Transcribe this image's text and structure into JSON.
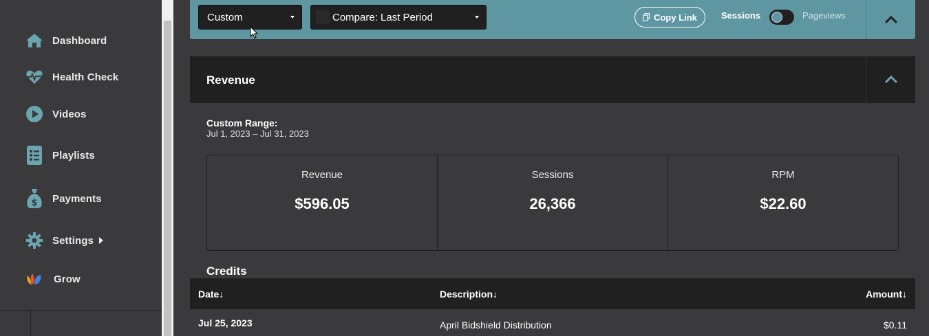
{
  "sidebar": {
    "items": [
      {
        "label": "Dashboard",
        "icon": "home-icon"
      },
      {
        "label": "Health Check",
        "icon": "heartbeat-icon"
      },
      {
        "label": "Videos",
        "icon": "play-icon"
      },
      {
        "label": "Playlists",
        "icon": "list-icon"
      },
      {
        "label": "Payments",
        "icon": "money-bag-icon"
      },
      {
        "label": "Settings",
        "icon": "gear-icon"
      },
      {
        "label": "Grow",
        "icon": "grow-logo-icon"
      }
    ]
  },
  "toolbar": {
    "range_select": "Custom",
    "compare_select": "Compare: Last Period",
    "copy_link": "Copy Link",
    "toggle_left": "Sessions",
    "toggle_right": "Pageviews"
  },
  "revenue": {
    "title": "Revenue",
    "range_label": "Custom Range:",
    "range_value": "Jul 1, 2023 – Jul 31, 2023",
    "stats": [
      {
        "label": "Revenue",
        "value": "$596.05"
      },
      {
        "label": "Sessions",
        "value": "26,366"
      },
      {
        "label": "RPM",
        "value": "$22.60"
      }
    ]
  },
  "credits": {
    "title": "Credits",
    "columns": [
      "Date↓",
      "Description↓",
      "Amount↓"
    ],
    "rows": [
      {
        "date": "Jul 25, 2023",
        "description": "April Bidshield Distribution",
        "amount": "$0.11"
      }
    ]
  },
  "colors": {
    "accent": "#5e97a1",
    "icon": "#6aa5b0",
    "panel_header": "#202020",
    "background": "#3a393b"
  }
}
